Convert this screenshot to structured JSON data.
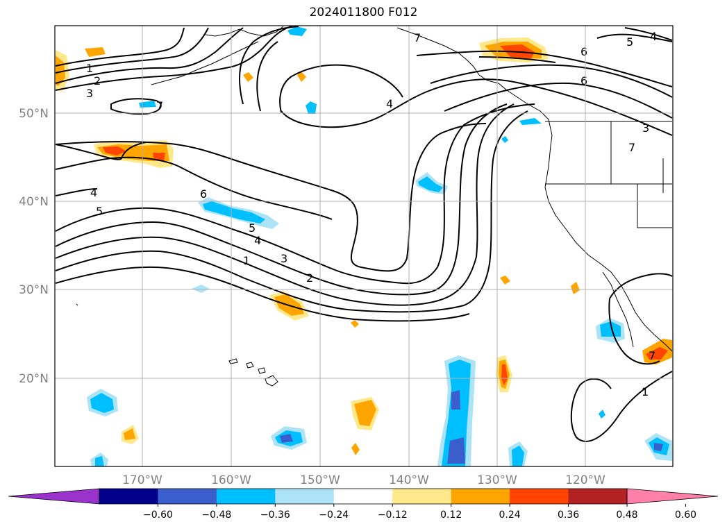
{
  "title": "2024011800 F012",
  "map": {
    "extent": {
      "lon_min": -180,
      "lon_max": -110,
      "lat_min": 10,
      "lat_max": 60
    },
    "gridlines": true,
    "lat_labels": [
      "20°N",
      "30°N",
      "40°N",
      "50°N"
    ],
    "lon_labels": [
      "170°W",
      "160°W",
      "150°W",
      "140°W",
      "130°W",
      "120°W"
    ],
    "contour_labels": [
      "1",
      "2",
      "3",
      "4",
      "5",
      "6",
      "7"
    ]
  },
  "colorbar": {
    "tick_labels": [
      "−0.60",
      "−0.48",
      "−0.36",
      "−0.24",
      "−0.12",
      "0.12",
      "0.24",
      "0.36",
      "0.48",
      "0.60"
    ],
    "colors": [
      "#9933cc",
      "#00008b",
      "#3a5fcd",
      "#00bfff",
      "#ade3f7",
      "#ffffff",
      "#ffe88a",
      "#ffa500",
      "#ff4500",
      "#b22222",
      "#ff80a8"
    ]
  }
}
